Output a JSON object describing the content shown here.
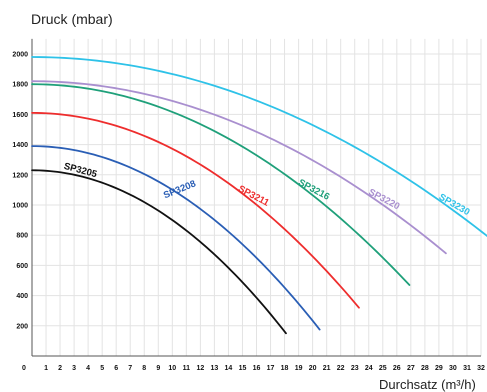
{
  "chart_data": {
    "type": "line",
    "title": "",
    "ylabel": "Druck (mbar)",
    "xlabel": "Durchsatz (m³/h)",
    "xlim": [
      0,
      32
    ],
    "ylim": [
      0,
      2100
    ],
    "x_ticks": [
      "0",
      "1",
      "2",
      "3",
      "4",
      "5",
      "6",
      "7",
      "8",
      "9",
      "10",
      "11",
      "12",
      "13",
      "14",
      "15",
      "16",
      "17",
      "18",
      "19",
      "20",
      "21",
      "22",
      "23",
      "24",
      "25",
      "26",
      "27",
      "28",
      "29",
      "30",
      "31",
      "32"
    ],
    "y_ticks": [
      "0",
      "200",
      "400",
      "600",
      "800",
      "1000",
      "1200",
      "1400",
      "1600",
      "1800",
      "2000"
    ],
    "grid": true,
    "series": [
      {
        "name": "SP3205",
        "color": "#111111",
        "shutoff": 1230,
        "end": [
          18.1,
          150
        ],
        "label_at": 3.4,
        "label_rot": 15
      },
      {
        "name": "SP3208",
        "color": "#2a5eb5",
        "shutoff": 1390,
        "end": [
          20.5,
          175
        ],
        "label_at": 10.6,
        "label_rot": -22
      },
      {
        "name": "SP3211",
        "color": "#ee2d2d",
        "shutoff": 1610,
        "end": [
          23.3,
          320
        ],
        "label_at": 15.7,
        "label_rot": 28
      },
      {
        "name": "SP3216",
        "color": "#1fa07a",
        "shutoff": 1800,
        "end": [
          26.9,
          470
        ],
        "label_at": 20.0,
        "label_rot": 28
      },
      {
        "name": "SP3220",
        "color": "#a98fcf",
        "shutoff": 1820,
        "end": [
          29.5,
          680
        ],
        "label_at": 25.0,
        "label_rot": 28
      },
      {
        "name": "SP3230",
        "color": "#2ec2e8",
        "shutoff": 1980,
        "end": [
          32.5,
          790
        ],
        "label_at": 30.0,
        "label_rot": 30
      }
    ]
  }
}
